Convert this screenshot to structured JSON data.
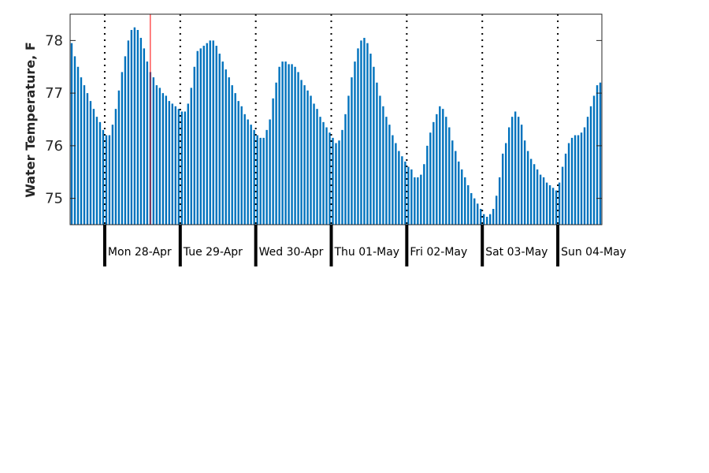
{
  "chart_data": {
    "type": "bar",
    "ylabel": "Water Temperature, F",
    "ylim": [
      74.5,
      78.5
    ],
    "yticks": [
      "75",
      "76",
      "77",
      "78"
    ],
    "bar_color": "#0072bd",
    "marker_color": "#ff0000",
    "grid": false,
    "days": [
      "Mon 28-Apr",
      "Tue 29-Apr",
      "Wed 30-Apr",
      "Thu 01-May",
      "Fri 02-May",
      "Sat 03-May",
      "Sun 04-May"
    ],
    "values": [
      77.95,
      77.7,
      77.5,
      77.3,
      77.15,
      77.0,
      76.85,
      76.7,
      76.55,
      76.45,
      76.3,
      76.2,
      76.2,
      76.4,
      76.7,
      77.05,
      77.4,
      77.7,
      78.0,
      78.2,
      78.25,
      78.2,
      78.05,
      77.85,
      77.6,
      77.4,
      77.3,
      77.15,
      77.1,
      77.0,
      76.95,
      76.85,
      76.8,
      76.75,
      76.7,
      76.65,
      76.65,
      76.8,
      77.1,
      77.5,
      77.8,
      77.85,
      77.9,
      77.95,
      78.0,
      78.0,
      77.9,
      77.75,
      77.6,
      77.45,
      77.3,
      77.15,
      77.0,
      76.85,
      76.75,
      76.6,
      76.5,
      76.4,
      76.3,
      76.2,
      76.15,
      76.15,
      76.3,
      76.5,
      76.9,
      77.2,
      77.5,
      77.6,
      77.6,
      77.55,
      77.55,
      77.5,
      77.4,
      77.25,
      77.15,
      77.05,
      76.95,
      76.8,
      76.7,
      76.55,
      76.45,
      76.35,
      76.25,
      76.15,
      76.05,
      76.1,
      76.3,
      76.6,
      76.95,
      77.3,
      77.6,
      77.85,
      78.0,
      78.05,
      77.95,
      77.75,
      77.5,
      77.2,
      76.95,
      76.75,
      76.55,
      76.4,
      76.2,
      76.05,
      75.9,
      75.8,
      75.7,
      75.6,
      75.55,
      75.4,
      75.4,
      75.45,
      75.65,
      76.0,
      76.25,
      76.45,
      76.6,
      76.75,
      76.7,
      76.55,
      76.35,
      76.1,
      75.9,
      75.7,
      75.55,
      75.4,
      75.25,
      75.1,
      75.0,
      74.9,
      74.8,
      74.7,
      74.65,
      74.7,
      74.8,
      75.05,
      75.4,
      75.85,
      76.05,
      76.35,
      76.55,
      76.65,
      76.55,
      76.4,
      76.1,
      75.9,
      75.75,
      75.65,
      75.55,
      75.45,
      75.4,
      75.3,
      75.25,
      75.2,
      75.15,
      75.3,
      75.6,
      75.85,
      76.05,
      76.15,
      76.2,
      76.2,
      76.25,
      76.35,
      76.55,
      76.75,
      76.95,
      77.15,
      77.2
    ],
    "marker_index": 25
  }
}
